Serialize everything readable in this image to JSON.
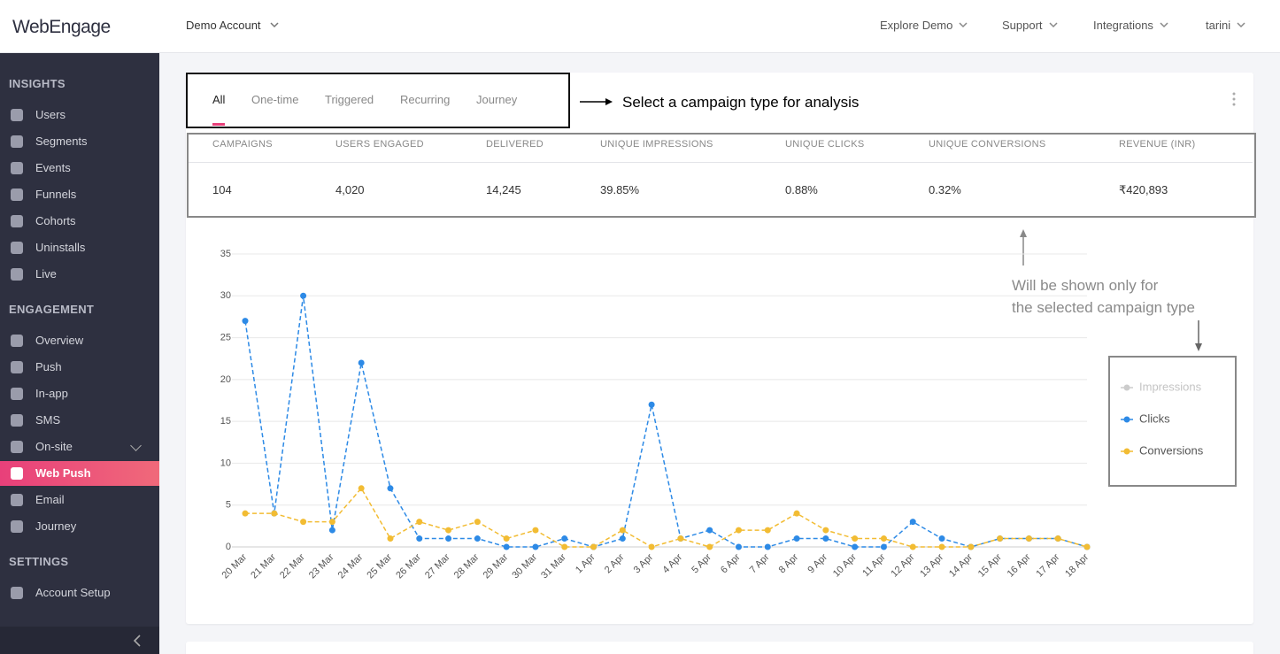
{
  "header": {
    "logo": "WebEngage",
    "account": "Demo Account",
    "nav": [
      "Explore Demo",
      "Support",
      "Integrations",
      "tarini"
    ]
  },
  "sidebar": {
    "sections": [
      {
        "title": "INSIGHTS",
        "items": [
          "Users",
          "Segments",
          "Events",
          "Funnels",
          "Cohorts",
          "Uninstalls",
          "Live"
        ]
      },
      {
        "title": "ENGAGEMENT",
        "items": [
          "Overview",
          "Push",
          "In-app",
          "SMS",
          "On-site",
          "Web Push",
          "Email",
          "Journey"
        ]
      },
      {
        "title": "SETTINGS",
        "items": [
          "Account Setup"
        ]
      }
    ],
    "active": "Web Push"
  },
  "tabs": {
    "items": [
      "All",
      "One-time",
      "Triggered",
      "Recurring",
      "Journey"
    ],
    "active": "All"
  },
  "stats": {
    "headers": [
      "CAMPAIGNS",
      "USERS ENGAGED",
      "DELIVERED",
      "UNIQUE IMPRESSIONS",
      "UNIQUE CLICKS",
      "UNIQUE CONVERSIONS",
      "REVENUE (INR)"
    ],
    "values": [
      "104",
      "4,020",
      "14,245",
      "39.85%",
      "0.88%",
      "0.32%",
      "₹420,893"
    ]
  },
  "annotations": {
    "tabs_note": "Select a campaign type for analysis",
    "stats_note": [
      "Will be shown only for",
      "the selected campaign type"
    ]
  },
  "chart_data": {
    "type": "line",
    "categories": [
      "20 Mar",
      "21 Mar",
      "22 Mar",
      "23 Mar",
      "24 Mar",
      "25 Mar",
      "26 Mar",
      "27 Mar",
      "28 Mar",
      "29 Mar",
      "30 Mar",
      "31 Mar",
      "1 Apr",
      "2 Apr",
      "3 Apr",
      "4 Apr",
      "5 Apr",
      "6 Apr",
      "7 Apr",
      "8 Apr",
      "9 Apr",
      "10 Apr",
      "11 Apr",
      "12 Apr",
      "13 Apr",
      "14 Apr",
      "15 Apr",
      "16 Apr",
      "17 Apr",
      "18 Apr"
    ],
    "ylim": [
      0,
      35
    ],
    "yticks": [
      0,
      5,
      10,
      15,
      20,
      25,
      30,
      35
    ],
    "grid": true,
    "series": [
      {
        "name": "Impressions",
        "color": "#cccccc",
        "visible": false
      },
      {
        "name": "Clicks",
        "color": "#2d8ae6",
        "visible": true,
        "values": [
          27,
          4,
          30,
          2,
          22,
          7,
          1,
          1,
          1,
          0,
          0,
          1,
          0,
          1,
          17,
          1,
          2,
          0,
          0,
          1,
          1,
          0,
          0,
          3,
          1,
          0,
          1,
          1,
          1,
          0
        ]
      },
      {
        "name": "Conversions",
        "color": "#f2bc33",
        "visible": true,
        "values": [
          4,
          4,
          3,
          3,
          7,
          1,
          3,
          2,
          3,
          1,
          2,
          0,
          0,
          2,
          0,
          1,
          0,
          2,
          2,
          4,
          2,
          1,
          1,
          0,
          0,
          0,
          1,
          1,
          1,
          0
        ]
      }
    ]
  }
}
